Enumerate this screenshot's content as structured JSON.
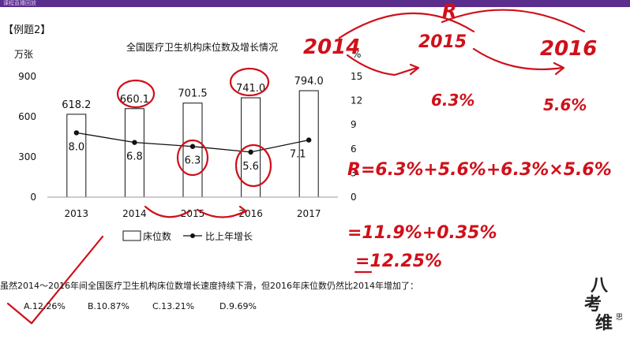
{
  "header": {
    "app_text": "课程直播回放",
    "example_label": "【例题2】"
  },
  "chart_data": {
    "type": "bar",
    "title": "全国医疗卫生机构床位数及增长情况",
    "ylabel_left": "万张",
    "ylabel_right": "%",
    "categories": [
      "2013",
      "2014",
      "2015",
      "2016",
      "2017"
    ],
    "series": [
      {
        "name": "床位数",
        "type": "bar",
        "axis": "left",
        "values": [
          618.2,
          660.1,
          701.5,
          741.0,
          794.0
        ],
        "labels": [
          "618.2",
          "660.1",
          "701.5",
          "741.0",
          "794.0"
        ]
      },
      {
        "name": "比上年增长",
        "type": "line",
        "axis": "right",
        "values": [
          8.0,
          6.8,
          6.3,
          5.6,
          7.1
        ],
        "labels": [
          "8.0",
          "6.8",
          "6.3",
          "5.6",
          "7.1"
        ]
      }
    ],
    "left_axis": {
      "ylim": [
        0,
        900
      ],
      "ticks": [
        "0",
        "300",
        "600",
        "900"
      ]
    },
    "right_axis": {
      "ylim": [
        0,
        15
      ],
      "ticks": [
        "0",
        "3",
        "6",
        "9",
        "12",
        "15"
      ]
    },
    "legend": [
      "床位数",
      "比上年增长"
    ],
    "legend_position": "bottom"
  },
  "question": {
    "text": "虽然2014～2016年间全国医疗卫生机构床位数增长速度持续下滑，但2016年床位数仍然比2014年增加了：",
    "options": [
      "A.12.26%",
      "B.10.87%",
      "C.13.21%",
      "D.9.69%"
    ]
  },
  "handwriting": {
    "color": "#d0101a",
    "r_label": "R",
    "year_2014": "2014",
    "year_2015": "2015",
    "year_2016": "2016",
    "rate_1": "6.3%",
    "rate_2": "5.6%",
    "formula": "R=6.3%+5.6%+6.3%×5.6%",
    "line2": "=11.9%+0.35%",
    "line3": "=12.25%"
  },
  "brand": {
    "line1": "八",
    "line2": "考",
    "line3": "维",
    "small": "思"
  }
}
